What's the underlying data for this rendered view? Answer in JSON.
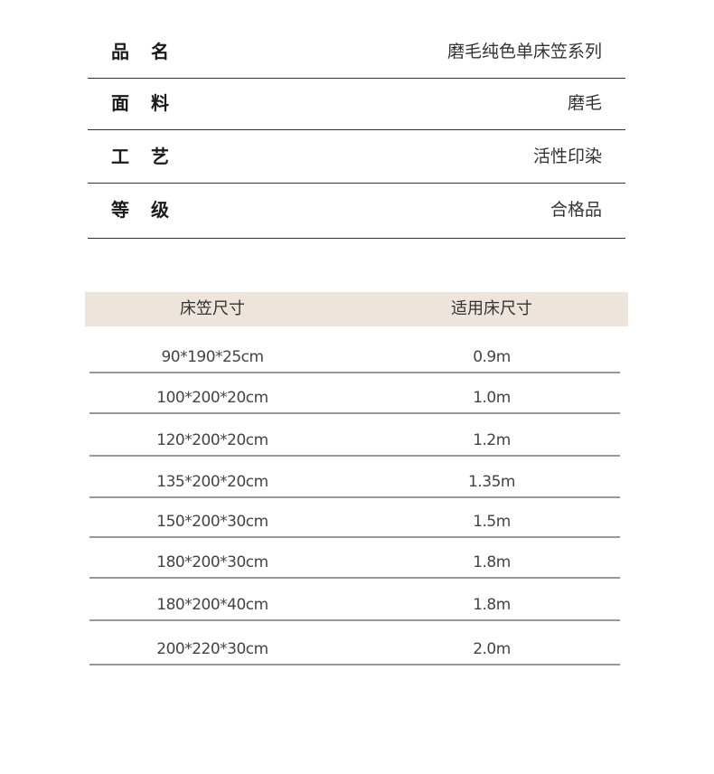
{
  "specs": [
    {
      "label": "品名",
      "value": "磨毛纯色单床笠系列"
    },
    {
      "label": "面料",
      "value": "磨毛"
    },
    {
      "label": "工艺",
      "value": "活性印染"
    },
    {
      "label": "等级",
      "value": "合格品"
    }
  ],
  "size_table": {
    "headers": [
      "床笠尺寸",
      "适用床尺寸"
    ],
    "header_bg": "#ede5dc",
    "rows": [
      [
        "90*190*25cm",
        "0.9m"
      ],
      [
        "100*200*20cm",
        "1.0m"
      ],
      [
        "120*200*20cm",
        "1.2m"
      ],
      [
        "135*200*20cm",
        "1.35m"
      ],
      [
        "150*200*30cm",
        "1.5m"
      ],
      [
        "180*200*30cm",
        "1.8m"
      ],
      [
        "180*200*40cm",
        "1.8m"
      ],
      [
        "200*220*30cm",
        "2.0m"
      ]
    ]
  }
}
